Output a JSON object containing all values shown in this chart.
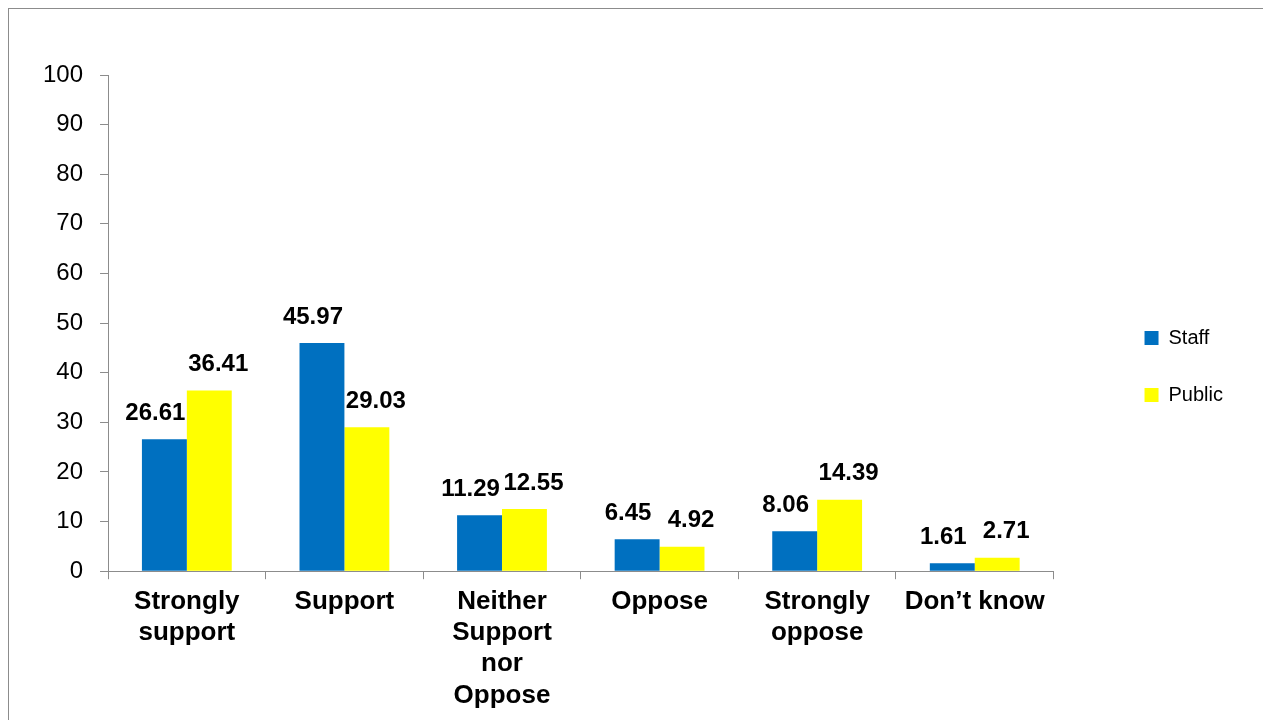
{
  "chart_data": {
    "type": "bar",
    "categories": [
      "Strongly support",
      "Support",
      "Neither Support nor Oppose",
      "Oppose",
      "Strongly oppose",
      "Don’t know"
    ],
    "series": [
      {
        "name": "Staff",
        "color": "#0070c0",
        "values": [
          26.61,
          45.97,
          11.29,
          6.45,
          8.06,
          1.61
        ]
      },
      {
        "name": "Public",
        "color": "#ffff00",
        "values": [
          36.41,
          29.03,
          12.55,
          4.92,
          14.39,
          2.71
        ]
      }
    ],
    "ylim": [
      0,
      100
    ],
    "yticks": [
      0,
      10,
      20,
      30,
      40,
      50,
      60,
      70,
      80,
      90,
      100
    ],
    "grid": false,
    "legend": "right",
    "data_labels": true
  }
}
